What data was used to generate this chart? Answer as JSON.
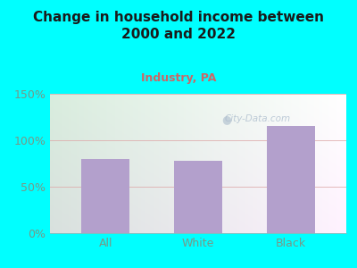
{
  "title": "Change in household income between\n2000 and 2022",
  "subtitle": "Industry, PA",
  "categories": [
    "All",
    "White",
    "Black"
  ],
  "values": [
    80,
    78,
    115
  ],
  "bar_color": "#b3a0cc",
  "background_color": "#00FFFF",
  "plot_bg_left": "#d4edda",
  "plot_bg_right": "#f0faf8",
  "title_color": "#1a1a1a",
  "subtitle_color": "#cc6666",
  "tick_color": "#779988",
  "grid_color": "#ddaaaa",
  "ylim": [
    0,
    150
  ],
  "yticks": [
    0,
    50,
    100,
    150
  ],
  "watermark": "City-Data.com",
  "title_fontsize": 11,
  "subtitle_fontsize": 9,
  "bar_width": 0.52
}
